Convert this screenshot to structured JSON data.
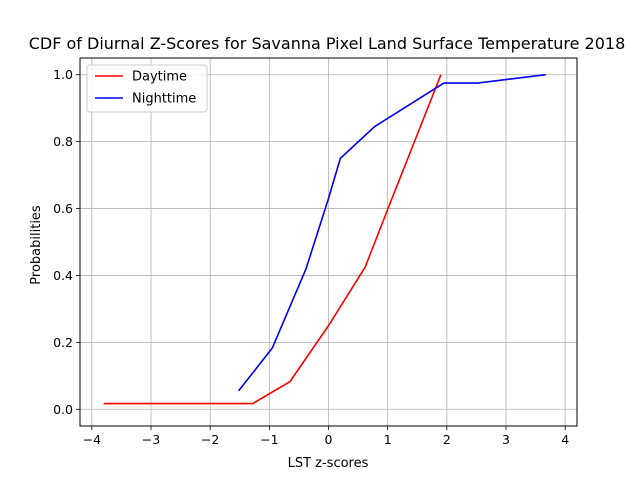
{
  "chart_data": {
    "type": "line",
    "title": "CDF of Diurnal Z-Scores for Savanna Pixel Land Surface Temperature 2018",
    "xlabel": "LST z-scores",
    "ylabel": "Probabilities",
    "xlim": [
      -4.2,
      4.2
    ],
    "ylim": [
      -0.05,
      1.05
    ],
    "xticks": [
      -4,
      -3,
      -2,
      -1,
      0,
      1,
      2,
      3,
      4
    ],
    "xtick_labels": [
      "−4",
      "−3",
      "−2",
      "−1",
      "0",
      "1",
      "2",
      "3",
      "4"
    ],
    "yticks": [
      0.0,
      0.2,
      0.4,
      0.6,
      0.8,
      1.0
    ],
    "ytick_labels": [
      "0.0",
      "0.2",
      "0.4",
      "0.6",
      "0.8",
      "1.0"
    ],
    "grid": true,
    "legend_position": "top-left",
    "series": [
      {
        "name": "Daytime",
        "color": "#ff0000",
        "points": [
          [
            -3.8,
            0.017
          ],
          [
            -1.28,
            0.017
          ],
          [
            -0.65,
            0.083
          ],
          [
            0.0,
            0.25
          ],
          [
            0.62,
            0.425
          ],
          [
            1.05,
            0.62
          ],
          [
            1.9,
            1.0
          ]
        ]
      },
      {
        "name": "Nighttime",
        "color": "#0000ff",
        "points": [
          [
            -1.52,
            0.055
          ],
          [
            -0.95,
            0.183
          ],
          [
            -0.38,
            0.42
          ],
          [
            0.0,
            0.63
          ],
          [
            0.2,
            0.75
          ],
          [
            0.78,
            0.845
          ],
          [
            1.95,
            0.975
          ],
          [
            2.52,
            0.975
          ],
          [
            3.67,
            1.0
          ]
        ]
      }
    ]
  }
}
